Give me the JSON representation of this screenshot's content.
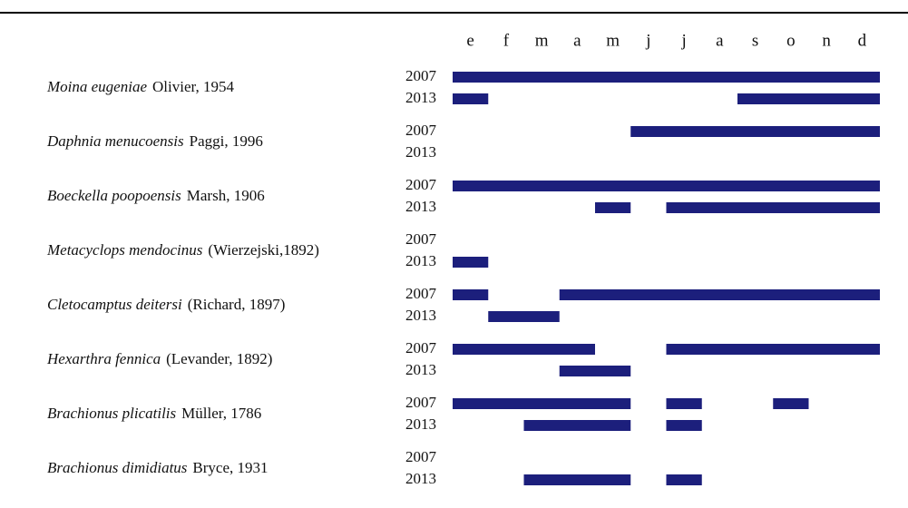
{
  "chart_data": {
    "type": "timeline",
    "categories": [
      "e",
      "f",
      "m",
      "a",
      "m",
      "j",
      "j",
      "a",
      "s",
      "o",
      "n",
      "d"
    ],
    "xlim": [
      0,
      12
    ],
    "color": "#1c1f7c",
    "species": [
      {
        "name": "Moina eugeniae",
        "author": "Olivier, 1954",
        "rows": [
          {
            "year": "2007",
            "bars": [
              [
                0,
                12
              ]
            ]
          },
          {
            "year": "2013",
            "bars": [
              [
                0,
                1
              ],
              [
                8,
                12
              ]
            ]
          }
        ]
      },
      {
        "name": "Daphnia menucoensis",
        "author": "Paggi, 1996",
        "rows": [
          {
            "year": "2007",
            "bars": [
              [
                5,
                12
              ]
            ]
          },
          {
            "year": "2013",
            "bars": []
          }
        ]
      },
      {
        "name": "Boeckella poopoensis",
        "author": "Marsh, 1906",
        "rows": [
          {
            "year": "2007",
            "bars": [
              [
                0,
                12
              ]
            ]
          },
          {
            "year": "2013",
            "bars": [
              [
                4,
                5
              ],
              [
                6,
                12
              ]
            ]
          }
        ]
      },
      {
        "name": "Metacyclops mendocinus",
        "author": "(Wierzejski,1892)",
        "rows": [
          {
            "year": "2007",
            "bars": []
          },
          {
            "year": "2013",
            "bars": [
              [
                0,
                1
              ]
            ]
          }
        ]
      },
      {
        "name": "Cletocamptus deitersi",
        "author": "(Richard, 1897)",
        "rows": [
          {
            "year": "2007",
            "bars": [
              [
                0,
                1
              ],
              [
                3,
                12
              ]
            ]
          },
          {
            "year": "2013",
            "bars": [
              [
                1,
                3
              ]
            ]
          }
        ]
      },
      {
        "name": "Hexarthra fennica",
        "author": "(Levander, 1892)",
        "rows": [
          {
            "year": "2007",
            "bars": [
              [
                0,
                4
              ],
              [
                6,
                12
              ]
            ]
          },
          {
            "year": "2013",
            "bars": [
              [
                3,
                5
              ]
            ]
          }
        ]
      },
      {
        "name": "Brachionus plicatilis",
        "author": "Müller, 1786",
        "rows": [
          {
            "year": "2007",
            "bars": [
              [
                0,
                5
              ],
              [
                6,
                7
              ],
              [
                9,
                10
              ]
            ]
          },
          {
            "year": "2013",
            "bars": [
              [
                2,
                5
              ],
              [
                6,
                7
              ]
            ]
          }
        ]
      },
      {
        "name": "Brachionus dimidiatus",
        "author": "Bryce, 1931",
        "rows": [
          {
            "year": "2007",
            "bars": []
          },
          {
            "year": "2013",
            "bars": [
              [
                2,
                5
              ],
              [
                6,
                7
              ]
            ]
          }
        ]
      }
    ]
  }
}
